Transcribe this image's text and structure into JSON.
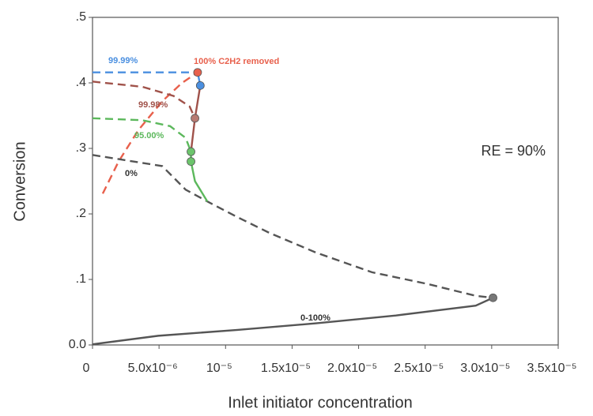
{
  "chart_data": {
    "type": "line",
    "x_label": "Inlet initiator concentration",
    "y_label": "Conversion",
    "annotation": "RE = 90%",
    "xlim": [
      0,
      3.5e-05
    ],
    "ylim": [
      0,
      0.5
    ],
    "xticks": [
      0,
      {
        "value": 5e-06,
        "label": "5.0x10⁻⁶"
      },
      {
        "value": 1e-05,
        "label": "10⁻⁵"
      },
      {
        "value": 1.5e-05,
        "label": "1.5x10⁻⁵"
      },
      {
        "value": 2e-05,
        "label": "2.0x10⁻⁵"
      },
      {
        "value": 2.5e-05,
        "label": "2.5x10⁻⁵"
      },
      {
        "value": 3e-05,
        "label": "3.0x10⁻⁵"
      },
      {
        "value": 3.5e-05,
        "label": "3.5x10⁻⁵"
      }
    ],
    "yticks": [
      {
        "value": 0,
        "label": "0.0"
      },
      {
        "value": 0.1,
        "label": ".1"
      },
      {
        "value": 0.2,
        "label": ".2"
      },
      {
        "value": 0.3,
        "label": ".3"
      },
      {
        "value": 0.4,
        "label": ".4"
      },
      {
        "value": 0.5,
        "label": ".5"
      }
    ],
    "series": [
      {
        "name": "99.99%",
        "color": "#4a8fe0",
        "dashed": true,
        "x": [
          0,
          3.75e-06,
          7.9e-06
        ],
        "values": [
          0.416,
          0.416,
          0.416
        ]
      },
      {
        "name": "100% C2H2 removed",
        "color": "#e8604c",
        "dashed": true,
        "x": [
          7.7e-07,
          1.96e-06,
          3.45e-06,
          5.24e-06,
          6.73e-06,
          7.9e-06
        ],
        "values": [
          0.231,
          0.28,
          0.328,
          0.372,
          0.4,
          0.416
        ]
      },
      {
        "name": "99.98%",
        "color": "#a0524a",
        "dashed": true,
        "x": [
          0,
          3.75e-06,
          6.1e-06,
          7.3e-06,
          7.7e-06
        ],
        "values": [
          0.402,
          0.394,
          0.38,
          0.364,
          0.346
        ]
      },
      {
        "name": "95.00%",
        "color": "#5cb85c",
        "dashed": true,
        "x": [
          0,
          3.75e-06,
          5.83e-06,
          7e-06,
          7.4e-06
        ],
        "values": [
          0.346,
          0.343,
          0.334,
          0.316,
          0.295
        ]
      },
      {
        "name": "0%",
        "color": "#555555",
        "dashed": true,
        "x": [
          0,
          5.24e-06,
          7e-06,
          8.63e-06,
          1.09e-05,
          1.33e-05,
          1.68e-05,
          2.1e-05,
          2.52e-05,
          2.88e-05,
          3.01e-05
        ],
        "values": [
          0.29,
          0.273,
          0.237,
          0.219,
          0.195,
          0.171,
          0.141,
          0.111,
          0.093,
          0.075,
          0.072
        ]
      },
      {
        "name": "0-100%",
        "color": "#555555",
        "dashed": false,
        "x": [
          3.01e-05,
          2.88e-05,
          2.28e-05,
          1.68e-05,
          1.09e-05,
          4.94e-06,
          0
        ],
        "values": [
          0.072,
          0.06,
          0.045,
          0.033,
          0.023,
          0.014,
          0.001
        ]
      },
      {
        "color": "#4a8fe0",
        "dashed": false,
        "x": [
          7.9e-06,
          8.1e-06
        ],
        "values": [
          0.416,
          0.396
        ]
      },
      {
        "color": "#a0524a",
        "dashed": false,
        "x": [
          8.1e-06,
          7.7e-06,
          7.4e-06
        ],
        "values": [
          0.396,
          0.346,
          0.295
        ]
      },
      {
        "color": "#5cb85c",
        "dashed": false,
        "x": [
          7.4e-06,
          7.4e-06,
          7.7e-06,
          8.63e-06
        ],
        "values": [
          0.295,
          0.28,
          0.25,
          0.219
        ]
      }
    ],
    "points": [
      {
        "x": 7.9e-06,
        "y": 0.416,
        "color": "#e8604c"
      },
      {
        "x": 8.1e-06,
        "y": 0.396,
        "color": "#4a8fe0"
      },
      {
        "x": 7.7e-06,
        "y": 0.346,
        "color": "#b87a72"
      },
      {
        "x": 7.4e-06,
        "y": 0.295,
        "color": "#6cc46c"
      },
      {
        "x": 7.4e-06,
        "y": 0.28,
        "color": "#6cc46c"
      },
      {
        "x": 3.01e-05,
        "y": 0.072,
        "color": "#777777"
      }
    ]
  }
}
